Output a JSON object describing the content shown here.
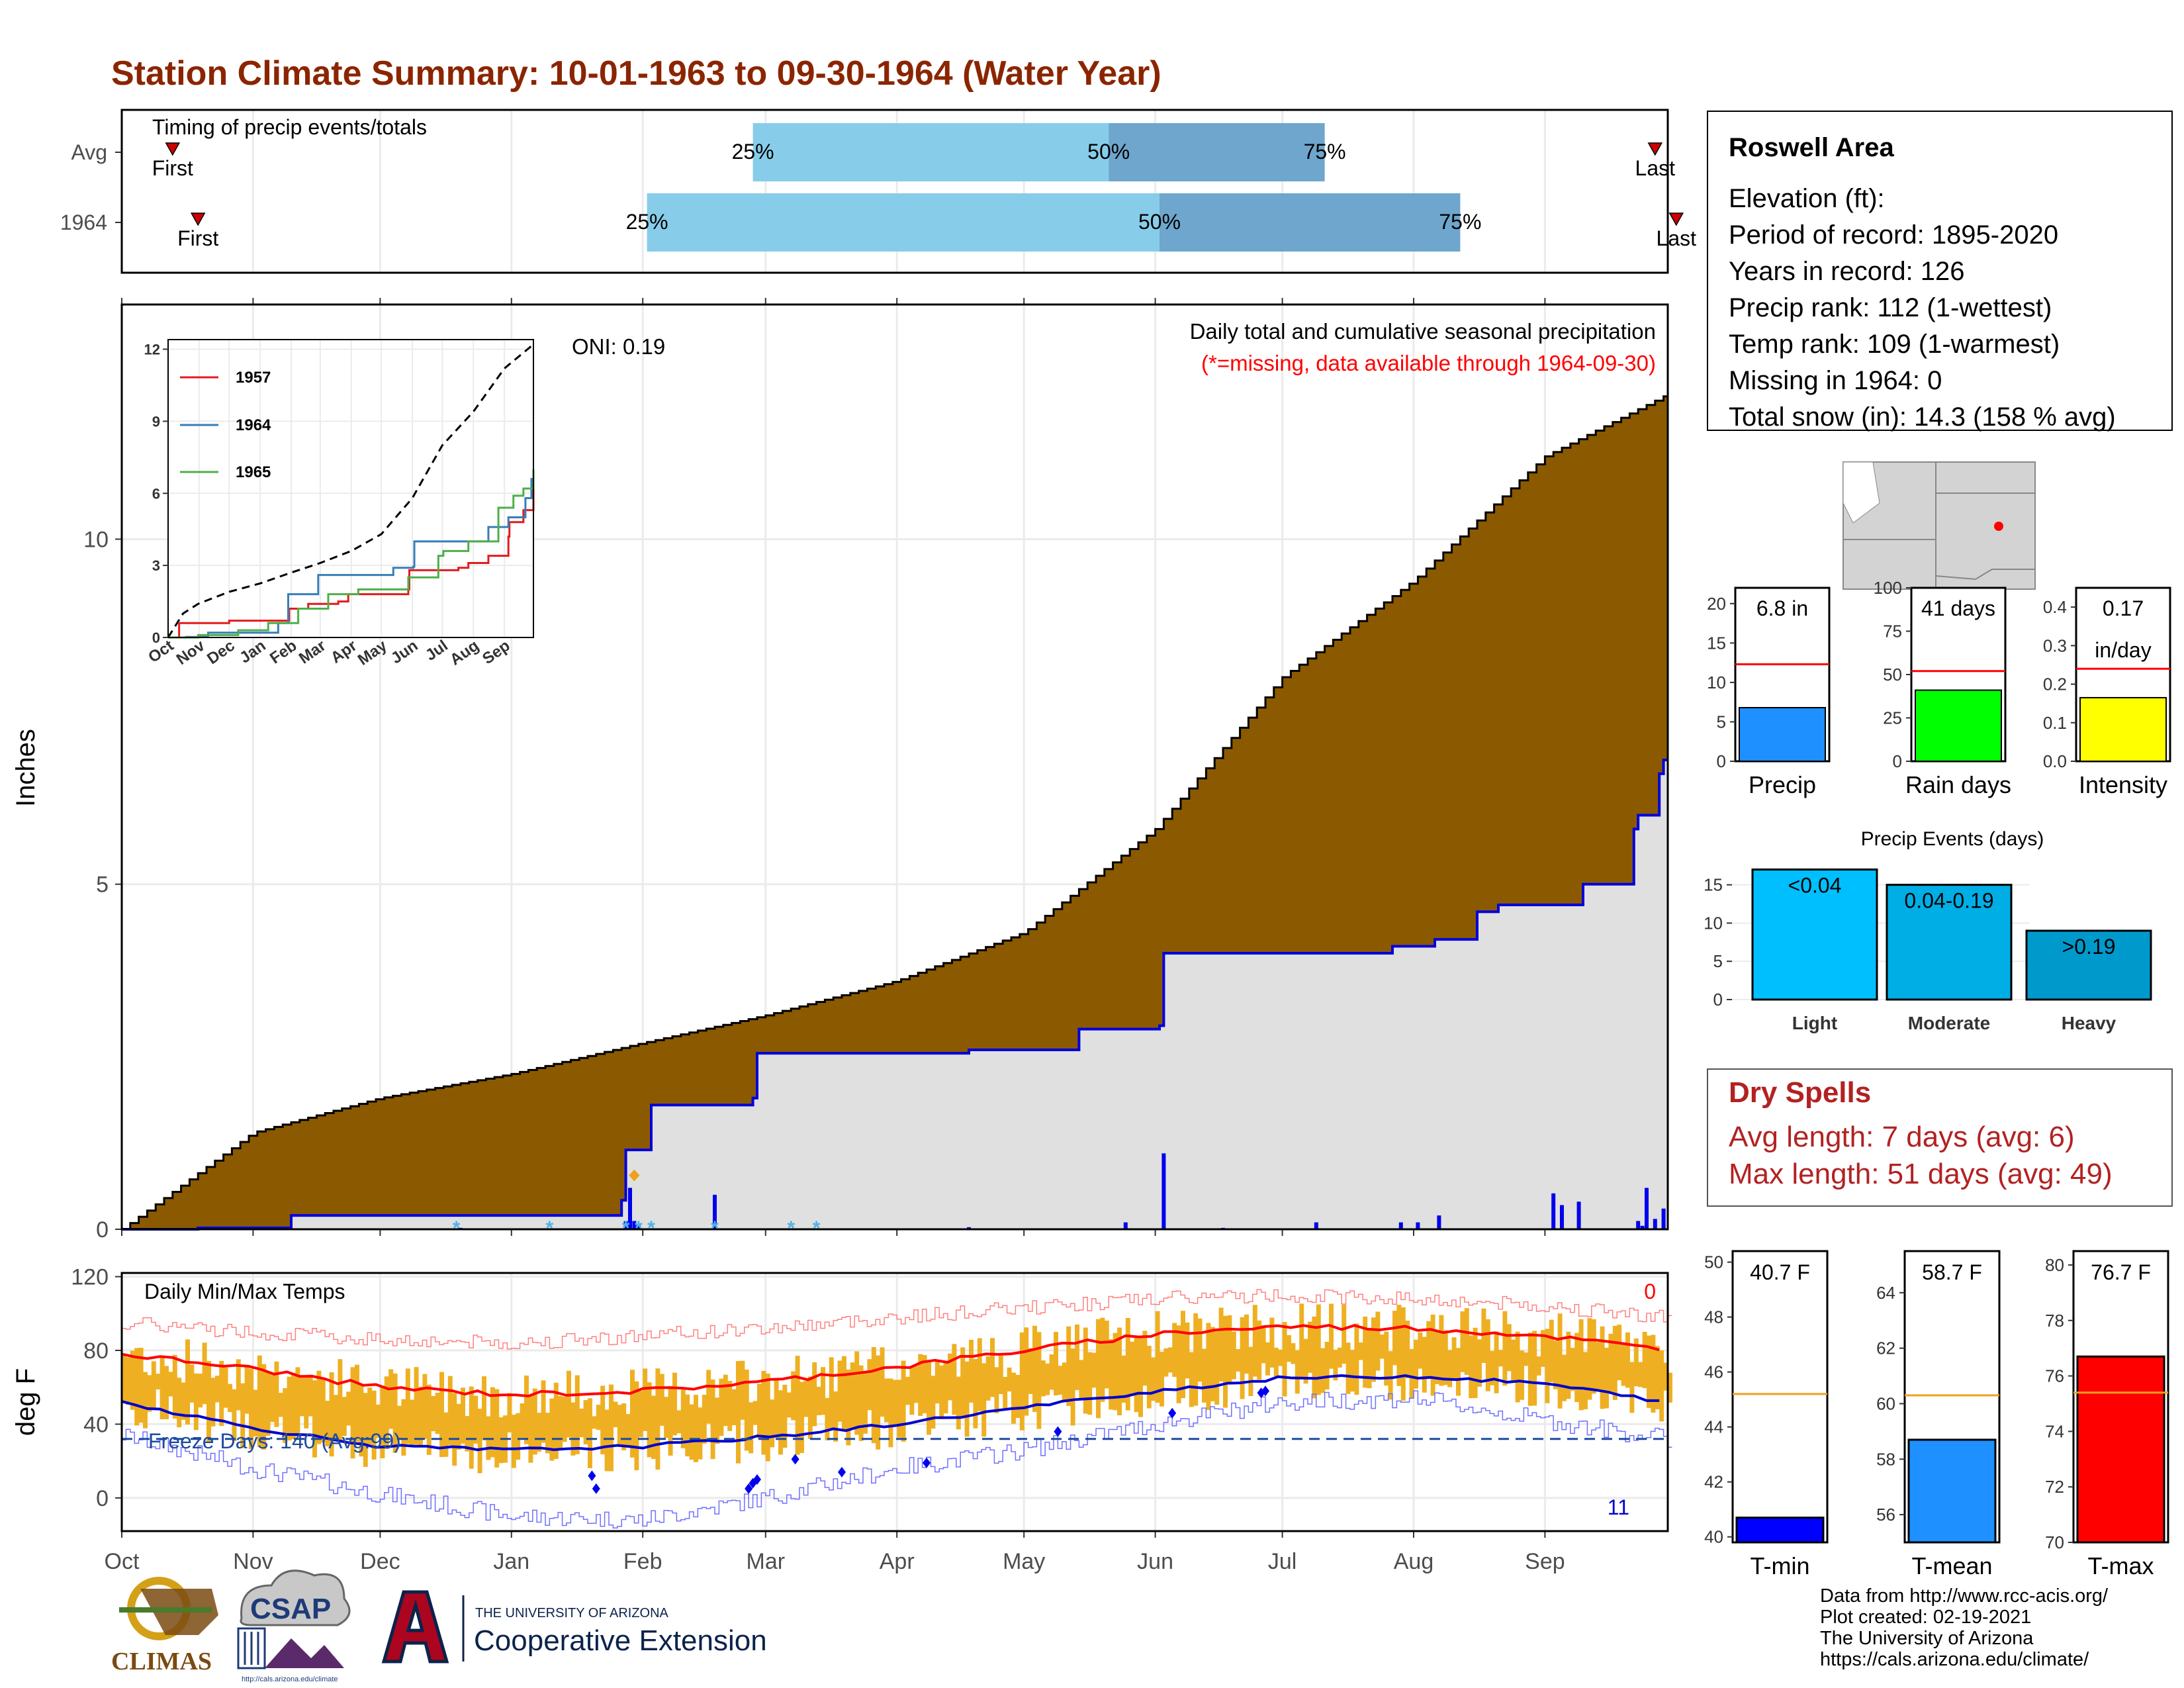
{
  "header": {
    "title": "Station Climate Summary: 10-01-1963 to 09-30-1964 (Water Year)"
  },
  "colors": {
    "title": "#8b2500",
    "cum_fill": "#8b5a00",
    "season_fill": "#e0e0e0",
    "season_line": "#0000dd",
    "light_blue": "#87cdea",
    "mid_blue": "#6ea6cd",
    "temp_bar": "#eeb022",
    "tmax_avg": "#ff0000",
    "tmin_avg": "#0000cc",
    "dry_spell": "#b22222"
  },
  "timing": {
    "label": "Timing of precip events/totals",
    "rows": [
      {
        "name": "Avg",
        "first_label": "First",
        "last_label": "Last",
        "p25_label": "25%",
        "p50_label": "50%",
        "p75_label": "75%",
        "first_day": 12,
        "p25_day": 149,
        "p50_day": 233,
        "p75_day": 284,
        "last_day": 362
      },
      {
        "name": "1964",
        "first_label": "First",
        "last_label": "Last",
        "p25_label": "25%",
        "p50_label": "50%",
        "p75_label": "75%",
        "first_day": 18,
        "p25_day": 124,
        "p50_day": 245,
        "p75_day": 316,
        "last_day": 367
      }
    ]
  },
  "precip_panel": {
    "ylabel": "Inches",
    "oni": "ONI: 0.19",
    "note": "Daily total and cumulative seasonal precipitation",
    "missing_note": "(*=missing, data available through 1964-09-30)"
  },
  "temp_panel": {
    "label": "Daily Min/Max Temps",
    "ylabel": "deg F",
    "freeze_label": "Freeze Days: 140 (Avg:99)",
    "count_top": "0",
    "count_bottom": "11"
  },
  "info_box": {
    "title": "Roswell Area",
    "lines": [
      "Elevation (ft):",
      "Period of record: 1895-2020",
      "Years in record: 126",
      "Precip rank: 112 (1-wettest)",
      "Temp rank: 109 (1-warmest)",
      "Missing in 1964: 0",
      "Total snow (in): 14.3 (158 % avg)"
    ]
  },
  "mini_bars": [
    {
      "label": "Precip",
      "value_label": "6.8 in",
      "value": 6.8,
      "avg": 12.3,
      "ymax": 22,
      "ticks": [
        0,
        5,
        10,
        15,
        20
      ],
      "color": "#1e90ff"
    },
    {
      "label": "Rain days",
      "value_label": "41 days",
      "value": 41,
      "avg": 52,
      "ymax": 100,
      "ticks": [
        0,
        25,
        50,
        75,
        100
      ],
      "color": "#00ff00"
    },
    {
      "label": "Intensity",
      "value_label": "0.17",
      "value_label2": "in/day",
      "value": 0.165,
      "avg": 0.24,
      "ymax": 0.45,
      "ticks": [
        "0.0",
        "0.1",
        "0.2",
        "0.3",
        "0.4"
      ],
      "color": "#ffff00"
    }
  ],
  "events": {
    "title": "Precip Events (days)",
    "ticks": [
      0,
      5,
      10,
      15
    ],
    "bars": [
      {
        "label": "Light",
        "value_label": "<0.04",
        "value": 17,
        "color": "#00bfff"
      },
      {
        "label": "Moderate",
        "value_label": "0.04-0.19",
        "value": 15,
        "color": "#00aee6"
      },
      {
        "label": "Heavy",
        "value_label": ">0.19",
        "value": 9,
        "color": "#0099cc"
      }
    ]
  },
  "dry_spells": {
    "title": "Dry Spells",
    "avg": "Avg length: 7 days (avg: 6)",
    "max": "Max length: 51 days (avg: 49)"
  },
  "temp_bars": [
    {
      "label": "T-min",
      "value_label": "40.7 F",
      "value": 40.7,
      "avg": 45.2,
      "ymin": 39.8,
      "ymax": 50.4,
      "ticks": [
        40,
        42,
        44,
        46,
        48,
        50
      ],
      "color": "#0000ff"
    },
    {
      "label": "T-mean",
      "value_label": "58.7 F",
      "value": 58.7,
      "avg": 60.3,
      "ymin": 55,
      "ymax": 65.5,
      "ticks": [
        56,
        58,
        60,
        62,
        64
      ],
      "color": "#1e90ff"
    },
    {
      "label": "T-max",
      "value_label": "76.7 F",
      "value": 76.7,
      "avg": 75.4,
      "ymin": 70,
      "ymax": 80.5,
      "ticks": [
        70,
        72,
        74,
        76,
        78,
        80
      ],
      "color": "#ff0000"
    }
  ],
  "logos": {
    "climas": "CLIMAS",
    "csap": "CSAP",
    "csap_url": "http://cals.arizona.edu/climate",
    "ua_small": "THE UNIVERSITY OF ARIZONA",
    "ua_big": "Cooperative Extension"
  },
  "footer": [
    "Data from http://www.rcc-acis.org/",
    "Plot created: 02-19-2021",
    "The University of Arizona",
    "https://cals.arizona.edu/climate/"
  ],
  "chart_data": [
    {
      "type": "area",
      "title": "Daily total and cumulative seasonal precipitation",
      "ylabel": "Inches",
      "x_unit": "day of water year (0 = Oct 1)",
      "x_ticks": [
        "Oct",
        "Nov",
        "Dec",
        "Jan",
        "Feb",
        "Mar",
        "Apr",
        "May",
        "Jun",
        "Jul",
        "Aug",
        "Sep"
      ],
      "ylim": [
        0,
        13.4
      ],
      "y_ticks": [
        0,
        5,
        10
      ],
      "series": [
        {
          "name": "Avg cumulative",
          "x": [
            0,
            31,
            61,
            92,
            123,
            152,
            183,
            213,
            244,
            274,
            305,
            336,
            365
          ],
          "values": [
            0,
            1.4,
            1.9,
            2.25,
            2.7,
            3.1,
            3.6,
            4.3,
            5.8,
            8.0,
            9.4,
            11.2,
            12.1
          ]
        },
        {
          "name": "1964 cumulative",
          "x": [
            0,
            18,
            30,
            40,
            80,
            118,
            119,
            125,
            149,
            150,
            200,
            225,
            226,
            245,
            246,
            290,
            300,
            310,
            320,
            325,
            345,
            357,
            358,
            363,
            364,
            365
          ],
          "values": [
            0,
            0.02,
            0.02,
            0.2,
            0.2,
            0.42,
            1.15,
            1.8,
            1.9,
            2.55,
            2.6,
            2.6,
            2.9,
            2.95,
            4.0,
            4.0,
            4.1,
            4.2,
            4.6,
            4.7,
            5.0,
            5.8,
            6.0,
            6.6,
            6.8,
            6.8
          ]
        }
      ],
      "daily_precip": {
        "x": [
          80,
          119,
          120,
          121,
          122,
          140,
          200,
          237,
          246,
          260,
          282,
          302,
          306,
          311,
          338,
          340,
          344,
          358,
          359,
          360,
          362,
          364
        ],
        "values": [
          0.02,
          0.12,
          0.6,
          0.12,
          0.08,
          0.5,
          0.03,
          0.1,
          1.1,
          0.02,
          0.1,
          0.1,
          0.1,
          0.2,
          0.52,
          0.35,
          0.4,
          0.12,
          0.05,
          0.6,
          0.15,
          0.3
        ]
      },
      "inset": {
        "type": "line",
        "x_ticks": [
          "Oct",
          "Nov",
          "Dec",
          "Jan",
          "Feb",
          "Mar",
          "Apr",
          "May",
          "Jun",
          "Jul",
          "Aug",
          "Sep"
        ],
        "ylim": [
          0,
          12.4
        ],
        "y_ticks": [
          0,
          3,
          6,
          9,
          12
        ],
        "series": [
          {
            "name": "Avg",
            "x": [
              0,
              15,
              30,
              61,
              92,
              123,
              152,
              183,
              213,
              244,
              274,
              305,
              336,
              365
            ],
            "values": [
              0,
              1,
              1.4,
              1.9,
              2.25,
              2.7,
              3.1,
              3.6,
              4.3,
              5.8,
              8.0,
              9.4,
              11.2,
              12.2
            ]
          },
          {
            "name": "1957",
            "x": [
              0,
              10,
              11,
              60,
              61,
              120,
              121,
              140,
              170,
              180,
              240,
              241,
              290,
              300,
              320,
              340,
              341,
              355,
              365
            ],
            "values": [
              0,
              0,
              0.6,
              0.6,
              0.7,
              0.7,
              1.2,
              1.4,
              1.5,
              1.8,
              2.0,
              2.8,
              2.9,
              3.1,
              3.4,
              4.2,
              4.8,
              5.3,
              6.2
            ]
          },
          {
            "name": "1964",
            "x": [
              0,
              18,
              40,
              80,
              110,
              120,
              150,
              200,
              225,
              245,
              246,
              290,
              320,
              340,
              357,
              363,
              365
            ],
            "values": [
              0,
              0.02,
              0.2,
              0.2,
              0.6,
              1.8,
              2.6,
              2.6,
              2.9,
              2.95,
              4.0,
              4.0,
              4.6,
              5.0,
              5.8,
              6.6,
              6.8
            ]
          },
          {
            "name": "1965",
            "x": [
              0,
              30,
              70,
              100,
              130,
              160,
              190,
              240,
              270,
              275,
              300,
              330,
              345,
              355,
              365
            ],
            "values": [
              0,
              0.1,
              0.3,
              0.6,
              1.2,
              1.8,
              2.0,
              2.5,
              3.4,
              3.6,
              4.0,
              5.4,
              5.9,
              6.2,
              7.0
            ]
          }
        ]
      }
    },
    {
      "type": "bar",
      "title": "Daily Min/Max Temps",
      "ylabel": "deg F",
      "ylim": [
        -18,
        122
      ],
      "y_ticks": [
        0,
        40,
        80,
        120
      ],
      "x_ticks": [
        "Oct",
        "Nov",
        "Dec",
        "Jan",
        "Feb",
        "Mar",
        "Apr",
        "May",
        "Jun",
        "Jul",
        "Aug",
        "Sep"
      ],
      "freeze_line": 32,
      "avg_tmax": {
        "x": [
          0,
          31,
          61,
          92,
          123,
          152,
          183,
          213,
          244,
          274,
          305,
          336,
          365
        ],
        "values": [
          78,
          70,
          60,
          56,
          58,
          63,
          71,
          80,
          89,
          93,
          92,
          88,
          80
        ]
      },
      "avg_tmin": {
        "x": [
          0,
          31,
          61,
          92,
          123,
          152,
          183,
          213,
          244,
          274,
          305,
          336,
          365
        ],
        "values": [
          52,
          38,
          28,
          26,
          28,
          33,
          40,
          49,
          58,
          65,
          66,
          62,
          52
        ]
      },
      "record_max": {
        "x": [
          0,
          31,
          61,
          92,
          123,
          152,
          183,
          213,
          244,
          274,
          305,
          336,
          365
        ],
        "values": [
          95,
          90,
          86,
          84,
          88,
          92,
          98,
          103,
          108,
          110,
          108,
          104,
          98
        ]
      },
      "record_min": {
        "x": [
          0,
          31,
          61,
          92,
          123,
          152,
          183,
          213,
          244,
          274,
          305,
          336,
          365
        ],
        "values": [
          34,
          16,
          2,
          -10,
          -12,
          0,
          16,
          26,
          40,
          52,
          54,
          42,
          32
        ]
      }
    }
  ]
}
